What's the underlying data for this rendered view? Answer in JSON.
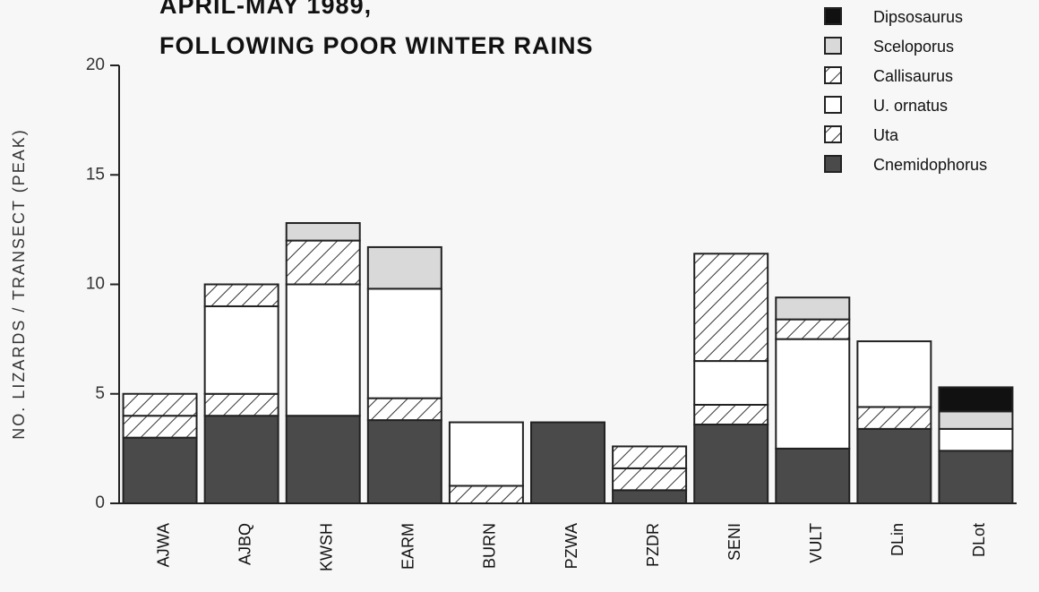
{
  "chart_data": {
    "type": "stacked_bar",
    "title": [
      "APRIL-MAY   1989,",
      "FOLLOWING POOR WINTER RAINS"
    ],
    "y_label": "NO. LIZARDS / TRANSECT (PEAK)",
    "categories": [
      "AJWA",
      "AJBQ",
      "KWSH",
      "EARM",
      "BURN",
      "PZWA",
      "PZDR",
      "SENI",
      "VULT",
      "DLin",
      "DLot"
    ],
    "series": [
      {
        "name": "Cnemidophorus",
        "color": "#4a4a4a",
        "values": [
          3,
          4,
          4,
          3.8,
          0,
          3.7,
          0.6,
          3.6,
          2.5,
          3.4,
          2.4
        ]
      },
      {
        "name": "Uta",
        "color": "#333333",
        "pattern": "hatch",
        "values": [
          1,
          1,
          0,
          1,
          0.8,
          0,
          1,
          0.9,
          0,
          1,
          0
        ]
      },
      {
        "name": "U. ornatus",
        "color": "#ffffff",
        "values": [
          0,
          4,
          6,
          5,
          2.9,
          0,
          0,
          2,
          5,
          3,
          1
        ]
      },
      {
        "name": "Callisaurus",
        "color": "#333333",
        "pattern": "hatch",
        "values": [
          1,
          1,
          2,
          0,
          0,
          0,
          1,
          4.9,
          0.9,
          0,
          0
        ]
      },
      {
        "name": "Sceloporus",
        "color": "#d9d9d9",
        "values": [
          0,
          0,
          0.8,
          1.9,
          0,
          0,
          0,
          0,
          1,
          0,
          0.8
        ]
      },
      {
        "name": "Dipsosaurus",
        "color": "#111111",
        "values": [
          0,
          0,
          0,
          0,
          0,
          0,
          0,
          0,
          0,
          0,
          1.1
        ]
      }
    ],
    "ylim": [
      0,
      20
    ],
    "yticks": [
      0,
      5,
      10,
      15,
      20
    ]
  }
}
